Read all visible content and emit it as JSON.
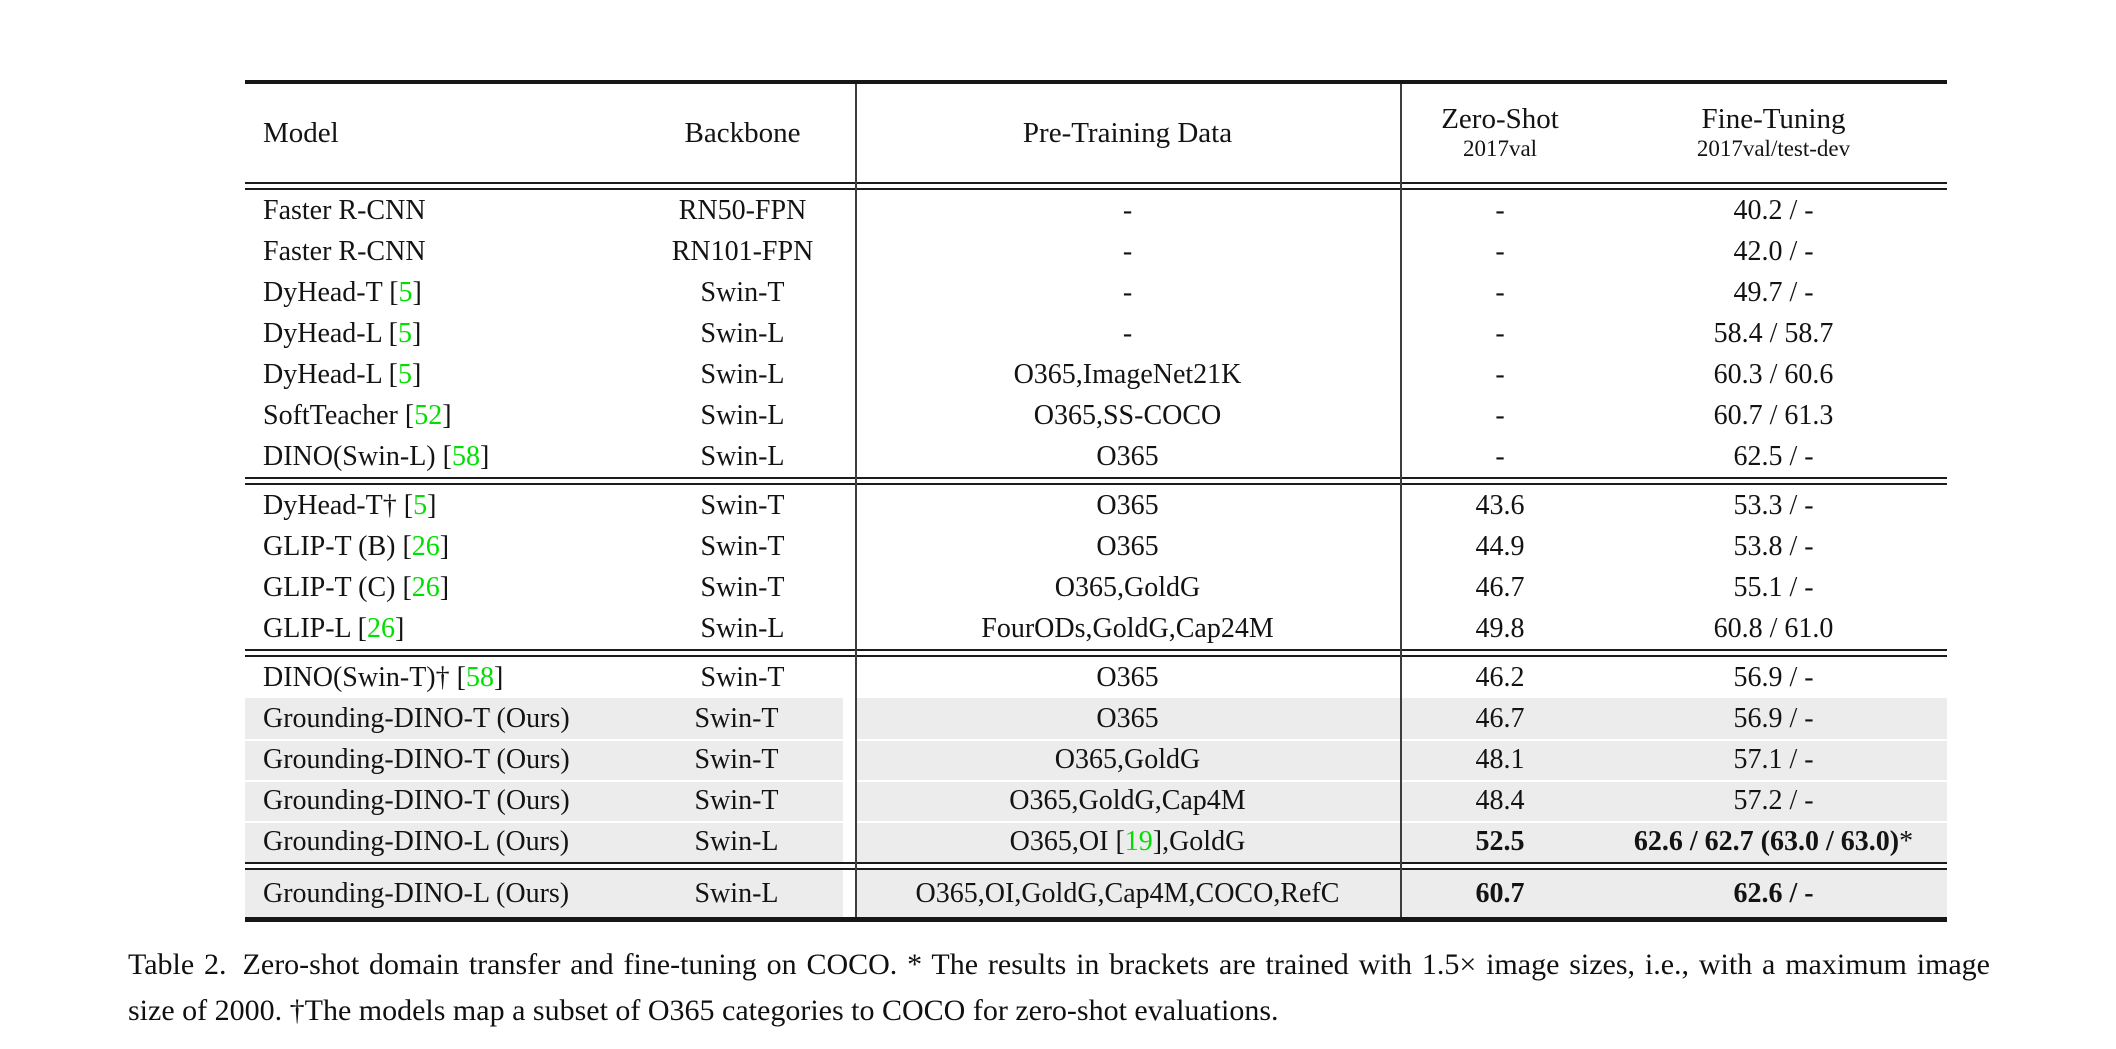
{
  "colors": {
    "citation_green": "#00e000",
    "row_highlight": "#ececec",
    "rule": "#161616"
  },
  "table": {
    "headers": {
      "model": "Model",
      "backbone": "Backbone",
      "pretrain": "Pre-Training Data",
      "zeroshot": "Zero-Shot",
      "zeroshot_sub": "2017val",
      "finetune": "Fine-Tuning",
      "finetune_sub": "2017val/test-dev"
    },
    "sections": [
      {
        "rows": [
          {
            "gray": false,
            "model": [
              {
                "t": "Faster R-CNN"
              }
            ],
            "backbone": "RN50-FPN",
            "pretrain": [
              {
                "t": "-"
              }
            ],
            "zeroshot": [
              {
                "t": "-"
              }
            ],
            "finetune": [
              {
                "t": "40.2 / -"
              }
            ]
          },
          {
            "gray": false,
            "model": [
              {
                "t": "Faster R-CNN"
              }
            ],
            "backbone": "RN101-FPN",
            "pretrain": [
              {
                "t": "-"
              }
            ],
            "zeroshot": [
              {
                "t": "-"
              }
            ],
            "finetune": [
              {
                "t": "42.0 / -"
              }
            ]
          },
          {
            "gray": false,
            "model": [
              {
                "t": "DyHead-T ["
              },
              {
                "t": "5",
                "green": true
              },
              {
                "t": "]"
              }
            ],
            "backbone": "Swin-T",
            "pretrain": [
              {
                "t": "-"
              }
            ],
            "zeroshot": [
              {
                "t": "-"
              }
            ],
            "finetune": [
              {
                "t": "49.7 / -"
              }
            ]
          },
          {
            "gray": false,
            "model": [
              {
                "t": "DyHead-L ["
              },
              {
                "t": "5",
                "green": true
              },
              {
                "t": "]"
              }
            ],
            "backbone": "Swin-L",
            "pretrain": [
              {
                "t": "-"
              }
            ],
            "zeroshot": [
              {
                "t": "-"
              }
            ],
            "finetune": [
              {
                "t": "58.4 / 58.7"
              }
            ]
          },
          {
            "gray": false,
            "model": [
              {
                "t": "DyHead-L ["
              },
              {
                "t": "5",
                "green": true
              },
              {
                "t": "]"
              }
            ],
            "backbone": "Swin-L",
            "pretrain": [
              {
                "t": "O365,ImageNet21K"
              }
            ],
            "zeroshot": [
              {
                "t": "-"
              }
            ],
            "finetune": [
              {
                "t": "60.3 / 60.6"
              }
            ]
          },
          {
            "gray": false,
            "model": [
              {
                "t": "SoftTeacher ["
              },
              {
                "t": "52",
                "green": true
              },
              {
                "t": "]"
              }
            ],
            "backbone": "Swin-L",
            "pretrain": [
              {
                "t": "O365,SS-COCO"
              }
            ],
            "zeroshot": [
              {
                "t": "-"
              }
            ],
            "finetune": [
              {
                "t": "60.7 / 61.3"
              }
            ]
          },
          {
            "gray": false,
            "model": [
              {
                "t": "DINO(Swin-L) ["
              },
              {
                "t": "58",
                "green": true
              },
              {
                "t": "]"
              }
            ],
            "backbone": "Swin-L",
            "pretrain": [
              {
                "t": "O365"
              }
            ],
            "zeroshot": [
              {
                "t": "-"
              }
            ],
            "finetune": [
              {
                "t": "62.5 / -"
              }
            ]
          }
        ]
      },
      {
        "rows": [
          {
            "gray": false,
            "model": [
              {
                "t": "DyHead-T† ["
              },
              {
                "t": "5",
                "green": true
              },
              {
                "t": "]"
              }
            ],
            "backbone": "Swin-T",
            "pretrain": [
              {
                "t": "O365"
              }
            ],
            "zeroshot": [
              {
                "t": "43.6"
              }
            ],
            "finetune": [
              {
                "t": "53.3 / -"
              }
            ]
          },
          {
            "gray": false,
            "model": [
              {
                "t": "GLIP-T (B) ["
              },
              {
                "t": "26",
                "green": true
              },
              {
                "t": "]"
              }
            ],
            "backbone": "Swin-T",
            "pretrain": [
              {
                "t": "O365"
              }
            ],
            "zeroshot": [
              {
                "t": "44.9"
              }
            ],
            "finetune": [
              {
                "t": "53.8 / -"
              }
            ]
          },
          {
            "gray": false,
            "model": [
              {
                "t": "GLIP-T (C) ["
              },
              {
                "t": "26",
                "green": true
              },
              {
                "t": "]"
              }
            ],
            "backbone": "Swin-T",
            "pretrain": [
              {
                "t": "O365,GoldG"
              }
            ],
            "zeroshot": [
              {
                "t": "46.7"
              }
            ],
            "finetune": [
              {
                "t": "55.1 / -"
              }
            ]
          },
          {
            "gray": false,
            "model": [
              {
                "t": "GLIP-L ["
              },
              {
                "t": "26",
                "green": true
              },
              {
                "t": "]"
              }
            ],
            "backbone": "Swin-L",
            "pretrain": [
              {
                "t": "FourODs,GoldG,Cap24M"
              }
            ],
            "zeroshot": [
              {
                "t": "49.8"
              }
            ],
            "finetune": [
              {
                "t": "60.8 / 61.0"
              }
            ]
          }
        ]
      },
      {
        "rows": [
          {
            "gray": false,
            "model": [
              {
                "t": "DINO(Swin-T)† ["
              },
              {
                "t": "58",
                "green": true
              },
              {
                "t": "]"
              }
            ],
            "backbone": "Swin-T",
            "pretrain": [
              {
                "t": "O365"
              }
            ],
            "zeroshot": [
              {
                "t": "46.2"
              }
            ],
            "finetune": [
              {
                "t": "56.9 / -"
              }
            ]
          },
          {
            "gray": true,
            "model": [
              {
                "t": "Grounding-DINO-T (Ours)"
              }
            ],
            "backbone": "Swin-T",
            "pretrain": [
              {
                "t": "O365"
              }
            ],
            "zeroshot": [
              {
                "t": "46.7"
              }
            ],
            "finetune": [
              {
                "t": "56.9 / -"
              }
            ]
          },
          {
            "gray": true,
            "model": [
              {
                "t": "Grounding-DINO-T (Ours)"
              }
            ],
            "backbone": "Swin-T",
            "pretrain": [
              {
                "t": "O365,GoldG"
              }
            ],
            "zeroshot": [
              {
                "t": "48.1"
              }
            ],
            "finetune": [
              {
                "t": "57.1 / -"
              }
            ]
          },
          {
            "gray": true,
            "model": [
              {
                "t": "Grounding-DINO-T (Ours)"
              }
            ],
            "backbone": "Swin-T",
            "pretrain": [
              {
                "t": "O365,GoldG,Cap4M"
              }
            ],
            "zeroshot": [
              {
                "t": "48.4"
              }
            ],
            "finetune": [
              {
                "t": "57.2 / -"
              }
            ]
          },
          {
            "gray": true,
            "model": [
              {
                "t": "Grounding-DINO-L (Ours)"
              }
            ],
            "backbone": "Swin-L",
            "pretrain": [
              {
                "t": "O365,OI ["
              },
              {
                "t": "19",
                "green": true
              },
              {
                "t": "],GoldG"
              }
            ],
            "zeroshot": [
              {
                "t": "52.5",
                "b": true
              }
            ],
            "finetune": [
              {
                "t": "62.6 / 62.7 (63.0 / 63.0)",
                "b": true
              },
              {
                "t": "*"
              }
            ]
          }
        ]
      },
      {
        "rows": [
          {
            "gray": true,
            "model": [
              {
                "t": "Grounding-DINO-L (Ours)"
              }
            ],
            "backbone": "Swin-L",
            "pretrain": [
              {
                "t": "O365,OI,GoldG,Cap4M,COCO,RefC"
              }
            ],
            "zeroshot": [
              {
                "t": "60.7",
                "b": true
              }
            ],
            "finetune": [
              {
                "t": "62.6 / -",
                "b": true
              }
            ]
          }
        ]
      }
    ]
  },
  "caption": {
    "label": "Table 2.",
    "text": "Zero-shot domain transfer and fine-tuning on COCO. * The results in brackets are trained with 1.5× image sizes, i.e., with a maximum image size of 2000. †The models map a subset of O365 categories to COCO for zero-shot evaluations."
  }
}
